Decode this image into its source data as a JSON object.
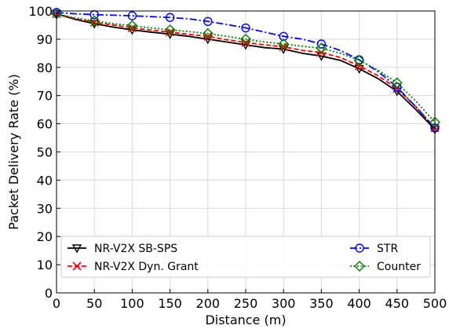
{
  "chart_data": {
    "type": "line",
    "title": "",
    "xlabel": "Distance (m)",
    "ylabel": "Packet Delivery Rate (%)",
    "xlim": [
      0,
      500
    ],
    "ylim": [
      0,
      100
    ],
    "xticks": [
      0,
      50,
      100,
      150,
      200,
      250,
      300,
      350,
      400,
      450,
      500
    ],
    "yticks": [
      0,
      10,
      20,
      30,
      40,
      50,
      60,
      70,
      80,
      90,
      100
    ],
    "grid": true,
    "legend_position": "bottom",
    "x": [
      0,
      25,
      50,
      75,
      100,
      125,
      150,
      175,
      200,
      225,
      250,
      275,
      300,
      325,
      350,
      375,
      400,
      425,
      450,
      475,
      500
    ],
    "series": [
      {
        "name": "NR-V2X SB-SPS",
        "color": "#000000",
        "linestyle": "solid",
        "marker": "triangle-down",
        "values": [
          99,
          97,
          95.5,
          94.3,
          93.3,
          92.5,
          91.8,
          91,
          90,
          89,
          88,
          87,
          86.5,
          85,
          84,
          82.5,
          79.5,
          76,
          71.5,
          65,
          58
        ]
      },
      {
        "name": "NR-V2X Dyn. Grant",
        "color": "#ff0000",
        "linestyle": "dashed",
        "marker": "x",
        "values": [
          99,
          97.3,
          96,
          95,
          94,
          93.2,
          92.5,
          91.7,
          91,
          89.8,
          88.8,
          88,
          87.3,
          86,
          85.3,
          83.5,
          80.5,
          77,
          72.5,
          66,
          58.5
        ]
      },
      {
        "name": "STR",
        "color": "#0000ff",
        "linestyle": "dashdot",
        "marker": "circle",
        "values": [
          99.5,
          99,
          98.7,
          98.5,
          98.3,
          98,
          97.7,
          97.2,
          96.3,
          95.2,
          94,
          92.5,
          91,
          90,
          88.3,
          86,
          82.7,
          78.5,
          73,
          66,
          58.5
        ]
      },
      {
        "name": "Counter",
        "color": "#008000",
        "linestyle": "dotted",
        "marker": "diamond",
        "values": [
          99,
          97.5,
          96.5,
          95.5,
          94.8,
          94,
          93.3,
          92.7,
          92,
          91,
          90,
          89,
          88.3,
          87.5,
          86.8,
          85,
          82.5,
          79,
          74.5,
          68,
          60.5
        ]
      }
    ],
    "marker_x": [
      0,
      50,
      100,
      150,
      200,
      250,
      300,
      350,
      400,
      450,
      500
    ]
  }
}
